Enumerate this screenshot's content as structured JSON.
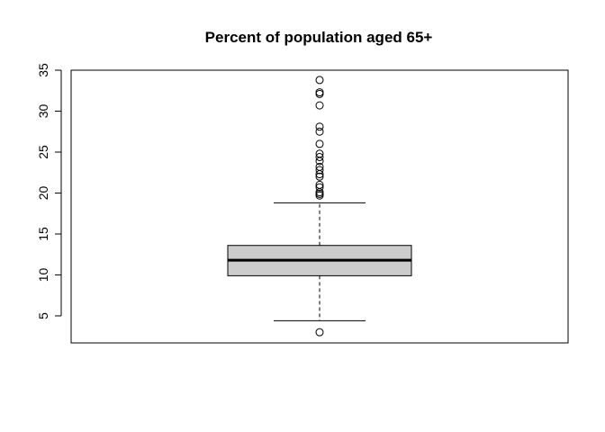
{
  "chart_data": {
    "type": "boxplot",
    "title": "Percent of population aged 65+",
    "xlabel": "",
    "ylabel": "",
    "ylim": [
      1.7,
      35.0
    ],
    "yticks": [
      5,
      10,
      15,
      20,
      25,
      30,
      35
    ],
    "grid": false,
    "box": {
      "whisker_low": 4.4,
      "q1": 9.9,
      "median": 11.8,
      "q3": 13.6,
      "whisker_high": 18.8,
      "outliers": [
        33.8,
        32.3,
        32.1,
        30.7,
        28.1,
        27.5,
        26.0,
        24.8,
        24.4,
        23.9,
        23.2,
        22.8,
        22.3,
        22.0,
        21.0,
        20.7,
        20.1,
        19.9,
        19.7,
        3.0
      ],
      "fill_color": "#cccccc"
    }
  }
}
